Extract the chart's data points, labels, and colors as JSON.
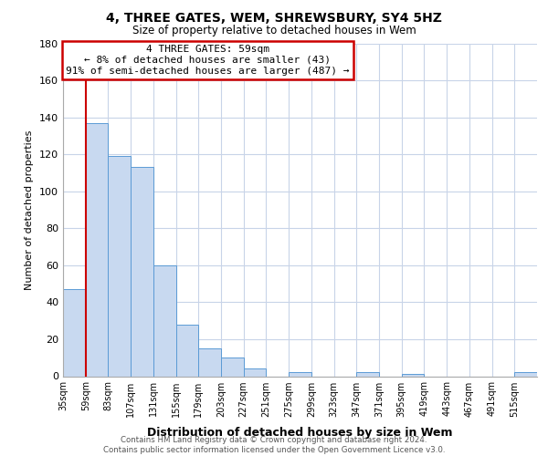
{
  "title": "4, THREE GATES, WEM, SHREWSBURY, SY4 5HZ",
  "subtitle": "Size of property relative to detached houses in Wem",
  "xlabel": "Distribution of detached houses by size in Wem",
  "ylabel": "Number of detached properties",
  "bar_color": "#c8d9f0",
  "bar_edge_color": "#5b9bd5",
  "background_color": "#ffffff",
  "grid_color": "#c8d4e8",
  "xlim_left": 35,
  "xlim_right": 539,
  "ylim": [
    0,
    180
  ],
  "bin_edges": [
    35,
    59,
    83,
    107,
    131,
    155,
    179,
    203,
    227,
    251,
    275,
    299,
    323,
    347,
    371,
    395,
    419,
    443,
    467,
    491,
    515,
    539
  ],
  "bar_heights": [
    47,
    137,
    119,
    113,
    60,
    28,
    15,
    10,
    4,
    0,
    2,
    0,
    0,
    2,
    0,
    1,
    0,
    0,
    0,
    0,
    2
  ],
  "red_line_x": 59,
  "annotation_title": "4 THREE GATES: 59sqm",
  "annotation_line1": "← 8% of detached houses are smaller (43)",
  "annotation_line2": "91% of semi-detached houses are larger (487) →",
  "annotation_box_color": "#ffffff",
  "annotation_box_edge_color": "#cc0000",
  "tick_labels": [
    "35sqm",
    "59sqm",
    "83sqm",
    "107sqm",
    "131sqm",
    "155sqm",
    "179sqm",
    "203sqm",
    "227sqm",
    "251sqm",
    "275sqm",
    "299sqm",
    "323sqm",
    "347sqm",
    "371sqm",
    "395sqm",
    "419sqm",
    "443sqm",
    "467sqm",
    "491sqm",
    "515sqm"
  ],
  "footer_line1": "Contains HM Land Registry data © Crown copyright and database right 2024.",
  "footer_line2": "Contains public sector information licensed under the Open Government Licence v3.0.",
  "yticks": [
    0,
    20,
    40,
    60,
    80,
    100,
    120,
    140,
    160,
    180
  ]
}
